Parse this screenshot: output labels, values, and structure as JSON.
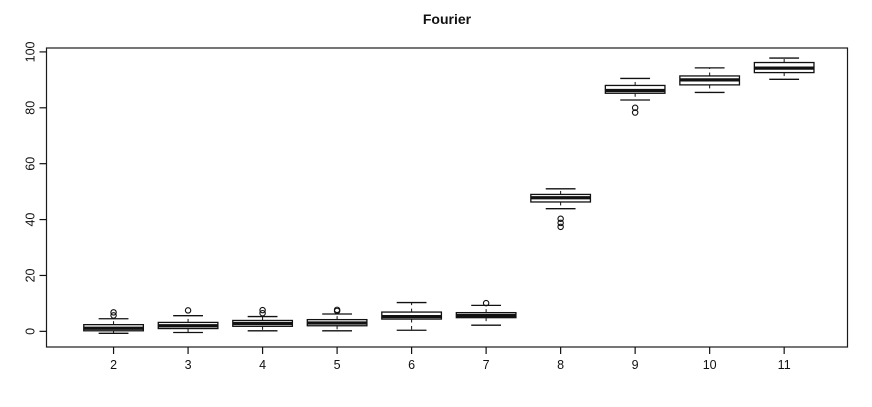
{
  "title": "Fourier",
  "chart_data": {
    "type": "boxplot",
    "title": "Fourier",
    "xlabel": "",
    "ylabel": "",
    "categories": [
      2,
      3,
      4,
      5,
      6,
      7,
      8,
      9,
      10,
      11
    ],
    "x_tick_labels": [
      "2",
      "3",
      "4",
      "5",
      "6",
      "7",
      "8",
      "9",
      "10",
      "11"
    ],
    "y_ticks": [
      0,
      20,
      40,
      60,
      80,
      100
    ],
    "y_tick_labels": [
      "0",
      "20",
      "40",
      "60",
      "80",
      "100"
    ],
    "xlim": [
      1.1,
      11.85
    ],
    "ylim": [
      -5.6,
      101.4
    ],
    "grid": false,
    "legend": "none",
    "box_width_categories": 0.8,
    "whisker_cap_width_categories": 0.4,
    "boxes": [
      {
        "category": 2,
        "whisker_low": -0.7,
        "q1": 0.2,
        "median": 1.1,
        "q3": 2.4,
        "whisker_high": 4.5,
        "outliers": [
          5.7,
          6.8
        ]
      },
      {
        "category": 3,
        "whisker_low": -0.4,
        "q1": 1.0,
        "median": 2.0,
        "q3": 3.2,
        "whisker_high": 5.6,
        "outliers": [
          7.5
        ]
      },
      {
        "category": 4,
        "whisker_low": 0.2,
        "q1": 1.8,
        "median": 2.8,
        "q3": 3.9,
        "whisker_high": 5.3,
        "outliers": [
          6.5,
          7.6
        ]
      },
      {
        "category": 5,
        "whisker_low": 0.2,
        "q1": 2.0,
        "median": 3.0,
        "q3": 4.2,
        "whisker_high": 6.2,
        "outliers": [
          7.3,
          7.7
        ]
      },
      {
        "category": 6,
        "whisker_low": 0.4,
        "q1": 4.4,
        "median": 5.3,
        "q3": 6.9,
        "whisker_high": 10.3,
        "outliers": []
      },
      {
        "category": 7,
        "whisker_low": 2.2,
        "q1": 4.9,
        "median": 5.7,
        "q3": 6.7,
        "whisker_high": 9.3,
        "outliers": [
          10.1
        ]
      },
      {
        "category": 8,
        "whisker_low": 43.9,
        "q1": 46.3,
        "median": 47.8,
        "q3": 49.0,
        "whisker_high": 51.0,
        "outliers": [
          40.3,
          38.8,
          37.4
        ]
      },
      {
        "category": 9,
        "whisker_low": 82.8,
        "q1": 85.2,
        "median": 86.2,
        "q3": 88.0,
        "whisker_high": 90.5,
        "outliers": [
          80.0,
          78.3
        ]
      },
      {
        "category": 10,
        "whisker_low": 85.5,
        "q1": 88.2,
        "median": 90.0,
        "q3": 91.4,
        "whisker_high": 94.3,
        "outliers": []
      },
      {
        "category": 11,
        "whisker_low": 90.2,
        "q1": 92.6,
        "median": 94.2,
        "q3": 96.2,
        "whisker_high": 97.8,
        "outliers": []
      }
    ],
    "colors": {
      "background": "#ffffff",
      "box_fill": "#ffffff",
      "stroke": "#111111",
      "axis": "#1a1a1a"
    }
  }
}
